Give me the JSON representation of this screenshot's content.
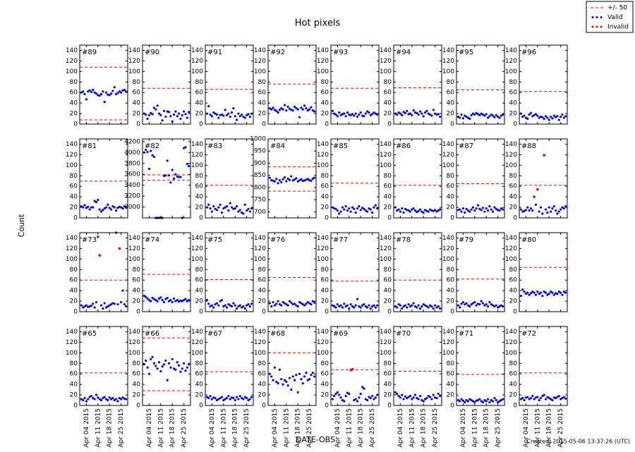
{
  "chart_data": {
    "type": "scatter",
    "title": "Hot pixels",
    "xlabel": "DATE-OBS",
    "ylabel": "Count",
    "footnote": "Created: 2015-05-06 13:37:26 (UTC)",
    "legend": [
      {
        "name": "+/- 50",
        "color": "#ff0000"
      },
      {
        "name": "Valid",
        "color": "#0000ff"
      },
      {
        "name": "Invalid",
        "color": "#ff0000"
      }
    ],
    "xlim": [
      "2015-03-31",
      "2015-04-29"
    ],
    "xticks": [
      {
        "value": "2015-04-04",
        "label": "Apr 04 2015"
      },
      {
        "value": "2015-04-11",
        "label": "Apr 11 2015"
      },
      {
        "value": "2015-04-18",
        "label": "Apr 18 2015"
      },
      {
        "value": "2015-04-25",
        "label": "Apr 25 2015"
      }
    ],
    "x": [
      "2015-04-01",
      "2015-04-02",
      "2015-04-03",
      "2015-04-04",
      "2015-04-05",
      "2015-04-06",
      "2015-04-07",
      "2015-04-08",
      "2015-04-09",
      "2015-04-10",
      "2015-04-11",
      "2015-04-12",
      "2015-04-13",
      "2015-04-14",
      "2015-04-15",
      "2015-04-16",
      "2015-04-17",
      "2015-04-18",
      "2015-04-19",
      "2015-04-20",
      "2015-04-21",
      "2015-04-22",
      "2015-04-23",
      "2015-04-24",
      "2015-04-25",
      "2015-04-26",
      "2015-04-27",
      "2015-04-28"
    ],
    "ylim": [
      0,
      150
    ],
    "yticks": [
      0,
      20,
      40,
      60,
      80,
      100,
      120,
      140
    ],
    "panels": [
      {
        "label": "#89",
        "limits": [
          8,
          108
        ],
        "values": [
          60,
          62,
          57,
          47,
          62,
          64,
          61,
          65,
          60,
          58,
          55,
          54,
          57,
          62,
          42,
          60,
          56,
          55,
          58,
          63,
          70,
          57,
          59,
          62,
          60,
          64,
          65,
          62
        ]
      },
      {
        "label": "#90",
        "limits": [
          68
        ],
        "values": [
          20,
          18,
          10,
          17,
          21,
          19,
          31,
          28,
          35,
          20,
          17,
          7,
          25,
          14,
          24,
          23,
          15,
          5,
          18,
          24,
          15,
          20,
          10,
          17,
          24,
          19,
          12,
          23
        ]
      },
      {
        "label": "#91",
        "limits": [
          66
        ],
        "values": [
          20,
          34,
          18,
          15,
          22,
          20,
          18,
          12,
          17,
          18,
          16,
          27,
          17,
          20,
          14,
          22,
          30,
          15,
          8,
          20,
          15,
          18,
          14,
          12,
          17,
          19,
          14,
          20
        ]
      },
      {
        "label": "#92",
        "limits": [
          76
        ],
        "values": [
          30,
          28,
          31,
          27,
          25,
          22,
          27,
          30,
          28,
          36,
          26,
          33,
          29,
          27,
          26,
          33,
          30,
          28,
          13,
          31,
          28,
          35,
          30,
          26,
          28,
          32,
          26,
          24
        ]
      },
      {
        "label": "#93",
        "limits": [
          68
        ],
        "values": [
          25,
          20,
          18,
          15,
          22,
          17,
          19,
          20,
          15,
          22,
          18,
          17,
          19,
          16,
          20,
          14,
          18,
          22,
          16,
          15,
          20,
          24,
          22,
          17,
          19,
          22,
          20,
          18
        ]
      },
      {
        "label": "#94",
        "limits": [
          69
        ],
        "values": [
          20,
          18,
          22,
          20,
          17,
          23,
          21,
          25,
          19,
          20,
          17,
          26,
          22,
          21,
          18,
          24,
          20,
          15,
          22,
          25,
          20,
          18,
          16,
          27,
          20,
          18,
          19,
          14
        ]
      },
      {
        "label": "#95",
        "limits": [
          65
        ],
        "values": [
          14,
          12,
          18,
          11,
          16,
          14,
          12,
          10,
          17,
          20,
          18,
          21,
          19,
          17,
          20,
          18,
          16,
          19,
          12,
          15,
          18,
          16,
          13,
          17,
          14,
          12,
          16,
          18
        ]
      },
      {
        "label": "#96",
        "limits": [
          62
        ],
        "values": [
          20,
          14,
          16,
          12,
          10,
          18,
          21,
          15,
          17,
          19,
          16,
          12,
          14,
          13,
          10,
          15,
          12,
          8,
          14,
          11,
          16,
          13,
          15,
          8,
          14,
          18,
          12,
          15
        ]
      },
      {
        "label": "#81",
        "limits": [
          70
        ],
        "values": [
          22,
          20,
          24,
          19,
          21,
          16,
          20,
          20,
          32,
          30,
          34,
          16,
          12,
          15,
          18,
          20,
          25,
          19,
          16,
          22,
          20,
          14,
          19,
          21,
          20,
          18,
          22,
          20
        ]
      },
      {
        "label": "#82",
        "ylim": [
          2800,
          4250
        ],
        "yticks": [
          3000,
          3200,
          3400,
          3600,
          3800,
          4000,
          4200
        ],
        "limits": [
          3490,
          3590
        ],
        "values": [
          4000,
          4050,
          4010,
          3700,
          4030,
          3950,
          3920,
          2800,
          2800,
          2800,
          2800,
          2800,
          3570,
          3580,
          3850,
          3580,
          3450,
          3680,
          3520,
          3600,
          3560,
          3550,
          3550,
          2800,
          4080,
          4100,
          3790,
          3750
        ]
      },
      {
        "label": "#83",
        "limits": [
          62
        ],
        "values": [
          20,
          25,
          18,
          12,
          22,
          17,
          15,
          20,
          25,
          10,
          18,
          20,
          22,
          14,
          28,
          20,
          17,
          18,
          22,
          12,
          15,
          10,
          8,
          25,
          14,
          17,
          12,
          18
        ]
      },
      {
        "label": "#84",
        "ylim": [
          675,
          1000
        ],
        "yticks": [
          700,
          750,
          800,
          850,
          900,
          950,
          1000
        ],
        "limits": [
          785,
          885
        ],
        "values": [
          840,
          830,
          828,
          825,
          835,
          818,
          830,
          822,
          834,
          842,
          826,
          836,
          831,
          846,
          829,
          833,
          838,
          825,
          830,
          834,
          827,
          829,
          832,
          835,
          830,
          828,
          836,
          840
        ]
      },
      {
        "label": "#85",
        "limits": [
          66
        ],
        "values": [
          20,
          18,
          17,
          14,
          8,
          12,
          20,
          16,
          22,
          14,
          18,
          12,
          20,
          17,
          10,
          18,
          22,
          15,
          19,
          17,
          14,
          12,
          18,
          16,
          10,
          20,
          24,
          18
        ]
      },
      {
        "label": "#86",
        "limits": [
          62
        ],
        "values": [
          20,
          14,
          16,
          12,
          18,
          10,
          17,
          15,
          14,
          12,
          16,
          18,
          14,
          11,
          13,
          16,
          12,
          10,
          15,
          13,
          12,
          16,
          14,
          13,
          15,
          12,
          14,
          16
        ]
      },
      {
        "label": "#87",
        "limits": [
          65
        ],
        "values": [
          15,
          16,
          12,
          18,
          10,
          17,
          14,
          12,
          16,
          20,
          14,
          18,
          24,
          17,
          15,
          19,
          12,
          18,
          14,
          22,
          16,
          12,
          20,
          17,
          15,
          14,
          18,
          16
        ]
      },
      {
        "label": "#88",
        "limits": [
          62
        ],
        "values": [
          16,
          12,
          13,
          15,
          20,
          14,
          18,
          14,
          40,
          25,
          null,
          12,
          20,
          8,
          null,
          16,
          10,
          20,
          12,
          18,
          22,
          14,
          8,
          12,
          16,
          20,
          18,
          22
        ],
        "invalid": [
          {
            "x": "2015-04-11",
            "y": 54
          },
          {
            "x": "2015-04-15",
            "y": 119
          }
        ]
      },
      {
        "label": "#73",
        "limits": [
          60
        ],
        "values": [
          12,
          8,
          10,
          12,
          9,
          10,
          11,
          15,
          8,
          18,
          null,
          null,
          12,
          6,
          16,
          8,
          10,
          12,
          14,
          16,
          15,
          null,
          14,
          null,
          18,
          40,
          14,
          10
        ],
        "invalid": [
          {
            "x": "2015-04-11",
            "y": 142
          },
          {
            "x": "2015-04-12",
            "y": 107
          },
          {
            "x": "2015-04-22",
            "y": 150
          },
          {
            "x": "2015-04-24",
            "y": 120
          }
        ]
      },
      {
        "label": "#74",
        "limits": [
          71
        ],
        "values": [
          30,
          28,
          25,
          22,
          20,
          26,
          24,
          22,
          20,
          25,
          27,
          22,
          18,
          24,
          26,
          20,
          22,
          18,
          25,
          20,
          22,
          19,
          21,
          20,
          22,
          24,
          20,
          22
        ]
      },
      {
        "label": "#75",
        "limits": [
          61
        ],
        "values": [
          22,
          15,
          10,
          12,
          8,
          14,
          16,
          12,
          20,
          22,
          10,
          12,
          8,
          14,
          12,
          10,
          16,
          12,
          6,
          10,
          12,
          8,
          10,
          6,
          12,
          14,
          10,
          15
        ]
      },
      {
        "label": "#76",
        "limits": [
          65
        ],
        "values": [
          16,
          10,
          18,
          12,
          15,
          20,
          14,
          12,
          18,
          16,
          14,
          12,
          20,
          17,
          14,
          15,
          12,
          10,
          18,
          16,
          14,
          12,
          15,
          18,
          16,
          14,
          20,
          17
        ]
      },
      {
        "label": "#77",
        "limits": [
          58
        ],
        "values": [
          12,
          10,
          8,
          14,
          10,
          12,
          8,
          15,
          10,
          12,
          6,
          14,
          10,
          8,
          12,
          24,
          10,
          8,
          12,
          14,
          10,
          8,
          12,
          6,
          10,
          12,
          8,
          12
        ]
      },
      {
        "label": "#78",
        "limits": [
          60
        ],
        "values": [
          10,
          8,
          14,
          12,
          6,
          10,
          12,
          8,
          14,
          10,
          12,
          16,
          10,
          8,
          12,
          6,
          10,
          14,
          12,
          10,
          8,
          12,
          10,
          6,
          12,
          8,
          10,
          6
        ]
      },
      {
        "label": "#79",
        "limits": [
          62
        ],
        "values": [
          12,
          8,
          15,
          18,
          14,
          16,
          12,
          10,
          14,
          16,
          18,
          12,
          15,
          14,
          20,
          16,
          12,
          14,
          10,
          18,
          14,
          12,
          10,
          12,
          8,
          10,
          12,
          10
        ]
      },
      {
        "label": "#80",
        "limits": [
          84
        ],
        "values": [
          30,
          42,
          38,
          34,
          36,
          32,
          35,
          38,
          36,
          32,
          38,
          34,
          36,
          30,
          38,
          36,
          32,
          34,
          38,
          36,
          32,
          35,
          34,
          38,
          36,
          32,
          38,
          36
        ]
      },
      {
        "label": "#65",
        "limits": [
          62
        ],
        "values": [
          12,
          10,
          14,
          8,
          12,
          16,
          18,
          14,
          12,
          20,
          15,
          12,
          10,
          14,
          16,
          12,
          10,
          15,
          12,
          14,
          10,
          12,
          8,
          14,
          12,
          15,
          13,
          12
        ]
      },
      {
        "label": "#66",
        "limits": [
          28,
          128
        ],
        "values": [
          78,
          85,
          72,
          60,
          88,
          92,
          80,
          75,
          70,
          82,
          65,
          74,
          78,
          85,
          48,
          80,
          72,
          88,
          70,
          68,
          82,
          76,
          64,
          70,
          80,
          66,
          72,
          78
        ]
      },
      {
        "label": "#67",
        "limits": [
          64
        ],
        "values": [
          16,
          14,
          18,
          12,
          15,
          14,
          10,
          12,
          14,
          16,
          10,
          12,
          14,
          18,
          12,
          15,
          14,
          10,
          16,
          12,
          18,
          14,
          12,
          16,
          14,
          10,
          12,
          16
        ]
      },
      {
        "label": "#68",
        "limits": [
          100
        ],
        "values": [
          60,
          55,
          48,
          72,
          45,
          42,
          68,
          50,
          40,
          48,
          45,
          38,
          52,
          30,
          55,
          48,
          58,
          25,
          60,
          50,
          42,
          55,
          62,
          48,
          50,
          58,
          62,
          55
        ]
      },
      {
        "label": "#69",
        "limits": [
          68
        ],
        "values": [
          12,
          18,
          22,
          25,
          20,
          15,
          10,
          8,
          18,
          24,
          22,
          null,
          null,
          10,
          12,
          8,
          15,
          22,
          35,
          32,
          12,
          10,
          16,
          14,
          18,
          12,
          15,
          20
        ],
        "invalid": [
          {
            "x": "2015-04-12",
            "y": 67
          },
          {
            "x": "2015-04-13",
            "y": 69
          }
        ]
      },
      {
        "label": "#70",
        "limits": [
          65
        ],
        "values": [
          25,
          22,
          18,
          15,
          20,
          12,
          17,
          14,
          16,
          18,
          12,
          15,
          20,
          14,
          12,
          18,
          10,
          8,
          12,
          14,
          18,
          16,
          12,
          20,
          15,
          14,
          22,
          18
        ]
      },
      {
        "label": "#71",
        "limits": [
          59
        ],
        "values": [
          10,
          8,
          12,
          9,
          6,
          10,
          8,
          12,
          10,
          8,
          6,
          9,
          10,
          12,
          8,
          6,
          10,
          8,
          12,
          6,
          10,
          8,
          14,
          10,
          6,
          8,
          10,
          12
        ]
      },
      {
        "label": "#72",
        "limits": [
          62
        ],
        "values": [
          12,
          14,
          10,
          15,
          16,
          12,
          14,
          18,
          12,
          15,
          16,
          10,
          14,
          18,
          20,
          12,
          16,
          14,
          12,
          10,
          15,
          14,
          16,
          18,
          12,
          14,
          16,
          13
        ]
      }
    ]
  }
}
